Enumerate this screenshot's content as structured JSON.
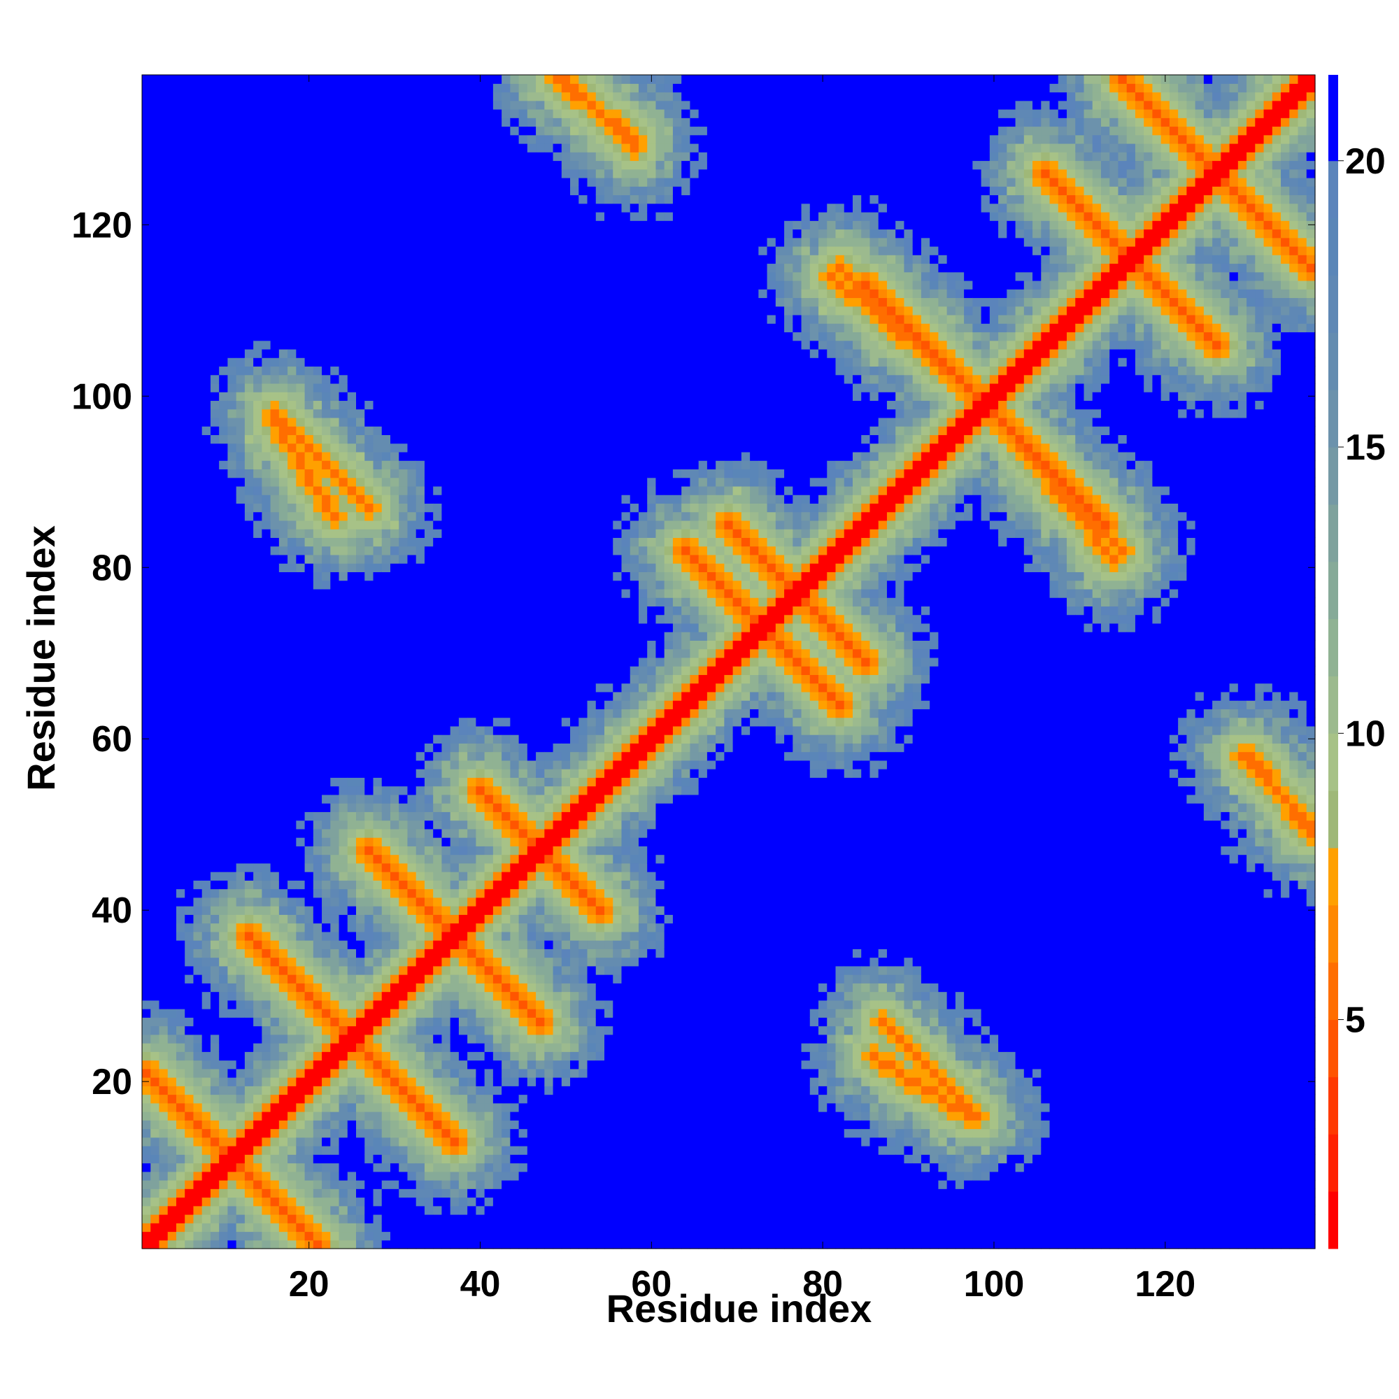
{
  "chart_data": {
    "type": "heatmap",
    "title": "",
    "xlabel": "Residue index",
    "ylabel": "Residue index",
    "n_residues": 137,
    "xlim": [
      1,
      137
    ],
    "ylim": [
      1,
      137
    ],
    "x_ticks": [
      20,
      40,
      60,
      80,
      100,
      120
    ],
    "y_ticks": [
      20,
      40,
      60,
      80,
      100,
      120
    ],
    "colorbar": {
      "range": [
        1,
        21.5
      ],
      "ticks": [
        5,
        10,
        15,
        20
      ],
      "levels": [
        {
          "max": 2,
          "color": "#ff0000"
        },
        {
          "max": 3,
          "color": "#ff2200"
        },
        {
          "max": 4,
          "color": "#ff3a00"
        },
        {
          "max": 5,
          "color": "#ff5500"
        },
        {
          "max": 6,
          "color": "#ff6e00"
        },
        {
          "max": 7,
          "color": "#ff8800"
        },
        {
          "max": 8,
          "color": "#ffa000"
        },
        {
          "max": 9,
          "color": "#9fb878"
        },
        {
          "max": 10,
          "color": "#a7c287"
        },
        {
          "max": 11,
          "color": "#9cba8e"
        },
        {
          "max": 12,
          "color": "#90b293"
        },
        {
          "max": 13,
          "color": "#86aa98"
        },
        {
          "max": 14,
          "color": "#7fa29d"
        },
        {
          "max": 15,
          "color": "#7599a5"
        },
        {
          "max": 16,
          "color": "#6c92ac"
        },
        {
          "max": 17,
          "color": "#648cb0"
        },
        {
          "max": 18,
          "color": "#5f88b5"
        },
        {
          "max": 19,
          "color": "#5a86b8"
        },
        {
          "max": 20,
          "color": "#5b84bb"
        },
        {
          "max": 21.5,
          "color": "#0000ff"
        }
      ]
    },
    "contact_bands": [
      {
        "name": "antiparallel",
        "center": 11,
        "from": 1,
        "to": 21
      },
      {
        "name": "antiparallel",
        "center": 25,
        "from": 16,
        "to": 37
      },
      {
        "name": "antiparallel",
        "center": 37,
        "from": 27,
        "to": 46
      },
      {
        "name": "antiparallel",
        "center": 47,
        "from": 40,
        "to": 54
      },
      {
        "name": "antiparallel",
        "center": 73,
        "from": 66,
        "to": 82
      },
      {
        "name": "antiparallel",
        "center": 77,
        "from": 70,
        "to": 85
      },
      {
        "name": "antiparallel",
        "center": 99,
        "from": 86,
        "to": 113
      },
      {
        "name": "antiparallel",
        "center": 116,
        "from": 106,
        "to": 126
      },
      {
        "name": "antiparallel",
        "center": 126,
        "from": 117,
        "to": 137
      },
      {
        "name": "off-diagonal",
        "x_from": 16,
        "x_to": 27,
        "y_from": 98,
        "y_to": 87
      },
      {
        "name": "off-diagonal",
        "x_from": 49,
        "x_to": 58,
        "y_from": 137,
        "y_to": 130
      },
      {
        "name": "off-diagonal",
        "x_from": 82,
        "x_to": 94,
        "y_from": 115,
        "y_to": 103
      },
      {
        "name": "off-diagonal",
        "x_from": 86,
        "x_to": 97,
        "y_from": 23,
        "y_to": 16
      },
      {
        "name": "off-diagonal",
        "x_from": 104,
        "x_to": 114,
        "y_from": 93,
        "y_to": 81
      },
      {
        "name": "off-diagonal",
        "x_from": 129,
        "x_to": 137,
        "y_from": 58,
        "y_to": 50
      }
    ]
  }
}
